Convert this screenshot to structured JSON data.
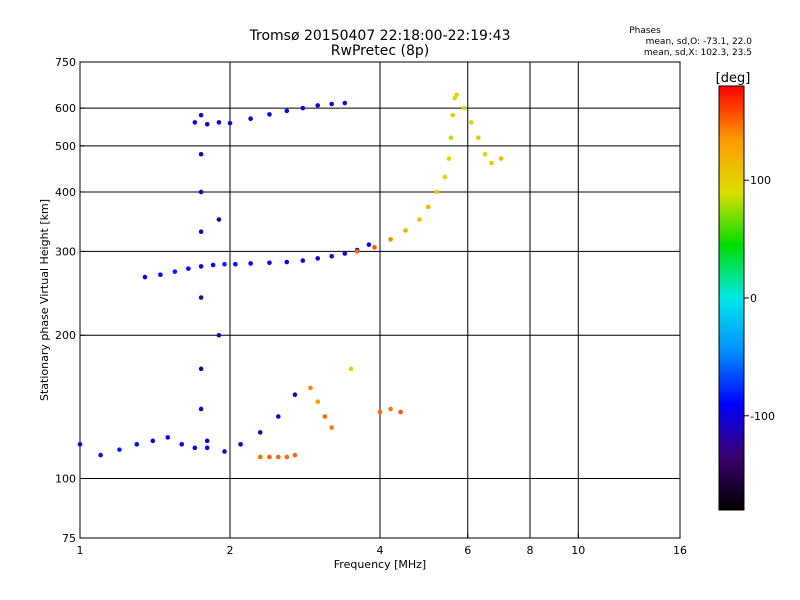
{
  "chart_data": {
    "type": "scatter",
    "title": "Tromsø 20150407 22:18:00-22:19:43",
    "subtitle": "RwPretec (8p)",
    "xlabel": "Frequency [MHz]",
    "ylabel": "Stationary phase Virtual Height [km]",
    "x_scale": "log",
    "y_scale": "log",
    "xlim": [
      1,
      16
    ],
    "ylim": [
      75,
      750
    ],
    "x_ticks": [
      1,
      2,
      4,
      6,
      8,
      10,
      16
    ],
    "y_ticks": [
      75,
      100,
      200,
      300,
      400,
      500,
      600,
      750
    ],
    "x_gridlines": [
      2,
      4,
      6,
      8,
      10
    ],
    "y_gridlines": [
      100,
      200,
      300,
      400,
      500,
      600
    ],
    "grid": true,
    "stats": {
      "heading": "Phases",
      "line_o": "mean, sd,O: -73.1, 22.0",
      "line_x": "mean, sd,X: 102.3, 23.5"
    },
    "colorbar": {
      "label": "[deg]",
      "ticks": [
        100,
        0,
        -100
      ],
      "range": [
        -180,
        180
      ],
      "colors": [
        "#000000",
        "#3a006e",
        "#0000ff",
        "#0090ff",
        "#00e8e8",
        "#00dd00",
        "#dddd00",
        "#ff9900",
        "#ff0000"
      ]
    },
    "series": [
      {
        "points": [
          [
            1.35,
            265,
            -95
          ],
          [
            1.45,
            268,
            -90
          ],
          [
            1.55,
            272,
            -85
          ],
          [
            1.65,
            276,
            -88
          ],
          [
            1.75,
            279,
            -92
          ],
          [
            1.85,
            281,
            -85
          ],
          [
            1.95,
            282,
            -80
          ],
          [
            2.05,
            282,
            -86
          ],
          [
            2.2,
            283,
            -90
          ],
          [
            2.4,
            284,
            -95
          ],
          [
            2.6,
            285,
            -100
          ],
          [
            2.8,
            287,
            -95
          ],
          [
            3.0,
            290,
            -105
          ],
          [
            3.2,
            293,
            -110
          ],
          [
            3.4,
            297,
            -100
          ],
          [
            3.6,
            302,
            -95
          ],
          [
            3.8,
            310,
            -90
          ]
        ]
      },
      {
        "points": [
          [
            3.6,
            300,
            150
          ],
          [
            3.9,
            306,
            155
          ],
          [
            4.2,
            318,
            140
          ],
          [
            4.5,
            332,
            120
          ],
          [
            4.8,
            350,
            110
          ],
          [
            5.0,
            372,
            115
          ],
          [
            5.2,
            400,
            100
          ],
          [
            5.4,
            430,
            95
          ],
          [
            5.5,
            470,
            90
          ],
          [
            5.55,
            520,
            85
          ],
          [
            5.6,
            580,
            100
          ],
          [
            5.65,
            630,
            95
          ]
        ]
      },
      {
        "points": [
          [
            1.7,
            560,
            -100
          ],
          [
            1.8,
            555,
            -105
          ],
          [
            1.9,
            560,
            -95
          ],
          [
            2.0,
            558,
            -100
          ],
          [
            2.2,
            570,
            -105
          ],
          [
            2.4,
            582,
            -100
          ],
          [
            2.6,
            592,
            -95
          ],
          [
            2.8,
            600,
            -100
          ],
          [
            3.0,
            608,
            -105
          ],
          [
            3.2,
            612,
            -110
          ],
          [
            3.4,
            615,
            -100
          ]
        ]
      },
      {
        "points": [
          [
            1.75,
            580,
            -110
          ],
          [
            1.75,
            480,
            -112
          ],
          [
            1.75,
            400,
            -115
          ],
          [
            1.75,
            330,
            -120
          ],
          [
            1.75,
            240,
            -125
          ],
          [
            1.75,
            170,
            -115
          ],
          [
            1.75,
            140,
            -110
          ],
          [
            1.8,
            120,
            -105
          ],
          [
            1.9,
            200,
            -110
          ],
          [
            1.9,
            350,
            -115
          ]
        ]
      },
      {
        "points": [
          [
            1.0,
            118,
            -90
          ],
          [
            1.1,
            112,
            -85
          ],
          [
            1.2,
            115,
            -80
          ],
          [
            1.3,
            118,
            -85
          ],
          [
            1.4,
            120,
            -90
          ],
          [
            1.5,
            122,
            -88
          ],
          [
            1.6,
            118,
            -95
          ],
          [
            1.7,
            116,
            -90
          ],
          [
            1.8,
            116,
            -92
          ],
          [
            1.95,
            114,
            -95
          ],
          [
            2.1,
            118,
            -100
          ],
          [
            2.3,
            125,
            -110
          ],
          [
            2.5,
            135,
            -105
          ],
          [
            2.7,
            150,
            -115
          ]
        ]
      },
      {
        "points": [
          [
            2.3,
            111,
            150
          ],
          [
            2.4,
            111,
            152
          ],
          [
            2.5,
            111,
            150
          ],
          [
            2.6,
            111,
            148
          ],
          [
            2.7,
            112,
            150
          ]
        ]
      },
      {
        "points": [
          [
            2.9,
            155,
            140
          ],
          [
            3.0,
            145,
            130
          ],
          [
            3.1,
            135,
            150
          ],
          [
            3.2,
            128,
            145
          ],
          [
            3.5,
            170,
            100
          ],
          [
            4.0,
            138,
            150
          ],
          [
            4.2,
            140,
            145
          ],
          [
            4.4,
            138,
            155
          ]
        ]
      },
      {
        "points": [
          [
            5.7,
            640,
            100
          ],
          [
            5.9,
            600,
            95
          ],
          [
            6.1,
            560,
            100
          ],
          [
            6.3,
            520,
            105
          ],
          [
            6.5,
            480,
            95
          ],
          [
            6.7,
            460,
            100
          ],
          [
            7.0,
            470,
            110
          ]
        ]
      }
    ]
  }
}
